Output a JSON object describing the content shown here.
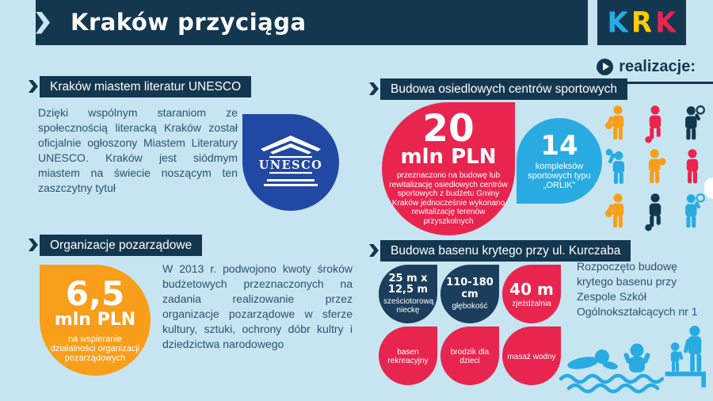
{
  "palette": {
    "bg": "#c7e5f1",
    "navy": "#143750",
    "text": "#2a5270",
    "unesco_blue": "#2148a3",
    "orange": "#f89e1b",
    "red": "#e8254f",
    "blue": "#29abe2",
    "yellow": "#ffcb05"
  },
  "header": {
    "title": "Kraków przyciąga",
    "logo_letters": [
      {
        "char": "K",
        "color": "#29abe2"
      },
      {
        "char": "R",
        "color": "#ffcb05"
      },
      {
        "char": "K",
        "color": "#e8254f"
      }
    ],
    "realizacje_label": "realizacje:"
  },
  "left": {
    "unesco": {
      "heading": "Kraków miastem literatur UNESCO",
      "body": "Dzięki wspólnym staraniom ze społecznością literacką Kraków został oficjalnie ogłoszony Miastem Literatury UNESCO. Kraków jest siódmym miastem na świecie noszącym ten zaszczytny tytuł",
      "logo_text": "UNESCO"
    },
    "ngo": {
      "heading": "Organizacje pozarządowe",
      "amount": "6,5",
      "amount_unit": "mln PLN",
      "amount_caption": "na wspieranie działalności organizacji pozarządowych",
      "body": "W 2013 r. podwojono kwoty śroków budżetowych przeznaczonych na zadania realizowanie przez organizacje pozarządowe w sferze kultury, sztuki, ochrony dóbr kultry i dziedzictwa narodowego"
    }
  },
  "right": {
    "sports": {
      "heading": "Budowa osiedlowych centrów sportowych",
      "amount": "20",
      "amount_unit": "mln PLN",
      "amount_caption": "przeznaczono na budowę lub rewitalizację osiedlowych centrów sportowych z budżetu Gminy Kraków jednocześnie wykonano rewitalizację terenów przyszkolnych",
      "orlik_count": "14",
      "orlik_caption": "kompleksów sportowych typu „ORLIK”",
      "athletes": [
        {
          "icon": "basketball-player",
          "color": "#f89e1b"
        },
        {
          "icon": "football-player",
          "color": "#e8254f"
        },
        {
          "icon": "tennis-player",
          "color": "#143750"
        },
        {
          "icon": "volleyball-player",
          "color": "#29abe2"
        },
        {
          "icon": "handball-player",
          "color": "#f89e1b"
        },
        {
          "icon": "runner",
          "color": "#e8254f"
        },
        {
          "icon": "basketball-player",
          "color": "#f89e1b"
        },
        {
          "icon": "football-player",
          "color": "#143750"
        },
        {
          "icon": "tennis-player",
          "color": "#29abe2"
        }
      ]
    },
    "pool": {
      "heading": "Budowa basenu krytego przy ul. Kurczaba",
      "bubbles": [
        {
          "value": "25 m x 12,5 m",
          "label": "sześciotorową nieckę",
          "color": "#1b3e5c"
        },
        {
          "value": "110-180 cm",
          "label": "głębokość",
          "color": "#1b3e5c"
        },
        {
          "value": "40 m",
          "label": "zjeżdżalnia",
          "color": "#e8254f"
        },
        {
          "value": "",
          "label": "basen rekreacyjny",
          "color": "#e8254f"
        },
        {
          "value": "",
          "label": "brodzik dla dzieci",
          "color": "#e8254f"
        },
        {
          "value": "",
          "label": "masaż wodny",
          "color": "#e8254f"
        }
      ],
      "body": "Rozpoczęto budowę krytego basenu przy Zespole Szkół Ogólnokształcących nr 1"
    }
  }
}
